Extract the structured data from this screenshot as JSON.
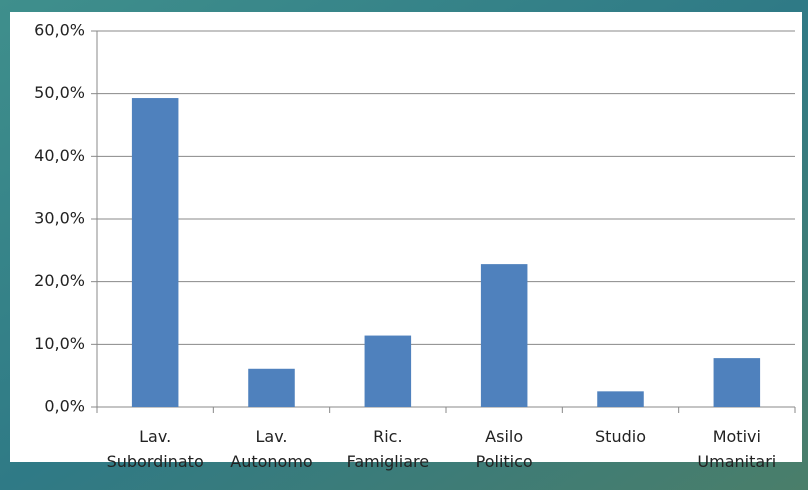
{
  "chart_data": {
    "type": "bar",
    "categories": [
      [
        "Lav.",
        "Subordinato"
      ],
      [
        "Lav.",
        "Autonomo"
      ],
      [
        "Ric.",
        "Famigliare"
      ],
      [
        "Asilo",
        "Politico"
      ],
      [
        "Studio"
      ],
      [
        "Motivi",
        "Umanitari"
      ]
    ],
    "values": [
      49.3,
      6.1,
      11.4,
      22.8,
      2.5,
      7.8
    ],
    "color": "#4f81bd",
    "ylim": [
      0,
      60
    ],
    "yticks": [
      {
        "value": 0,
        "label": "0,0%"
      },
      {
        "value": 10,
        "label": "10,0%"
      },
      {
        "value": 20,
        "label": "20,0%"
      },
      {
        "value": 30,
        "label": "30,0%"
      },
      {
        "value": 40,
        "label": "40,0%"
      },
      {
        "value": 50,
        "label": "50,0%"
      },
      {
        "value": 60,
        "label": "60,0%"
      }
    ],
    "grid": true
  }
}
